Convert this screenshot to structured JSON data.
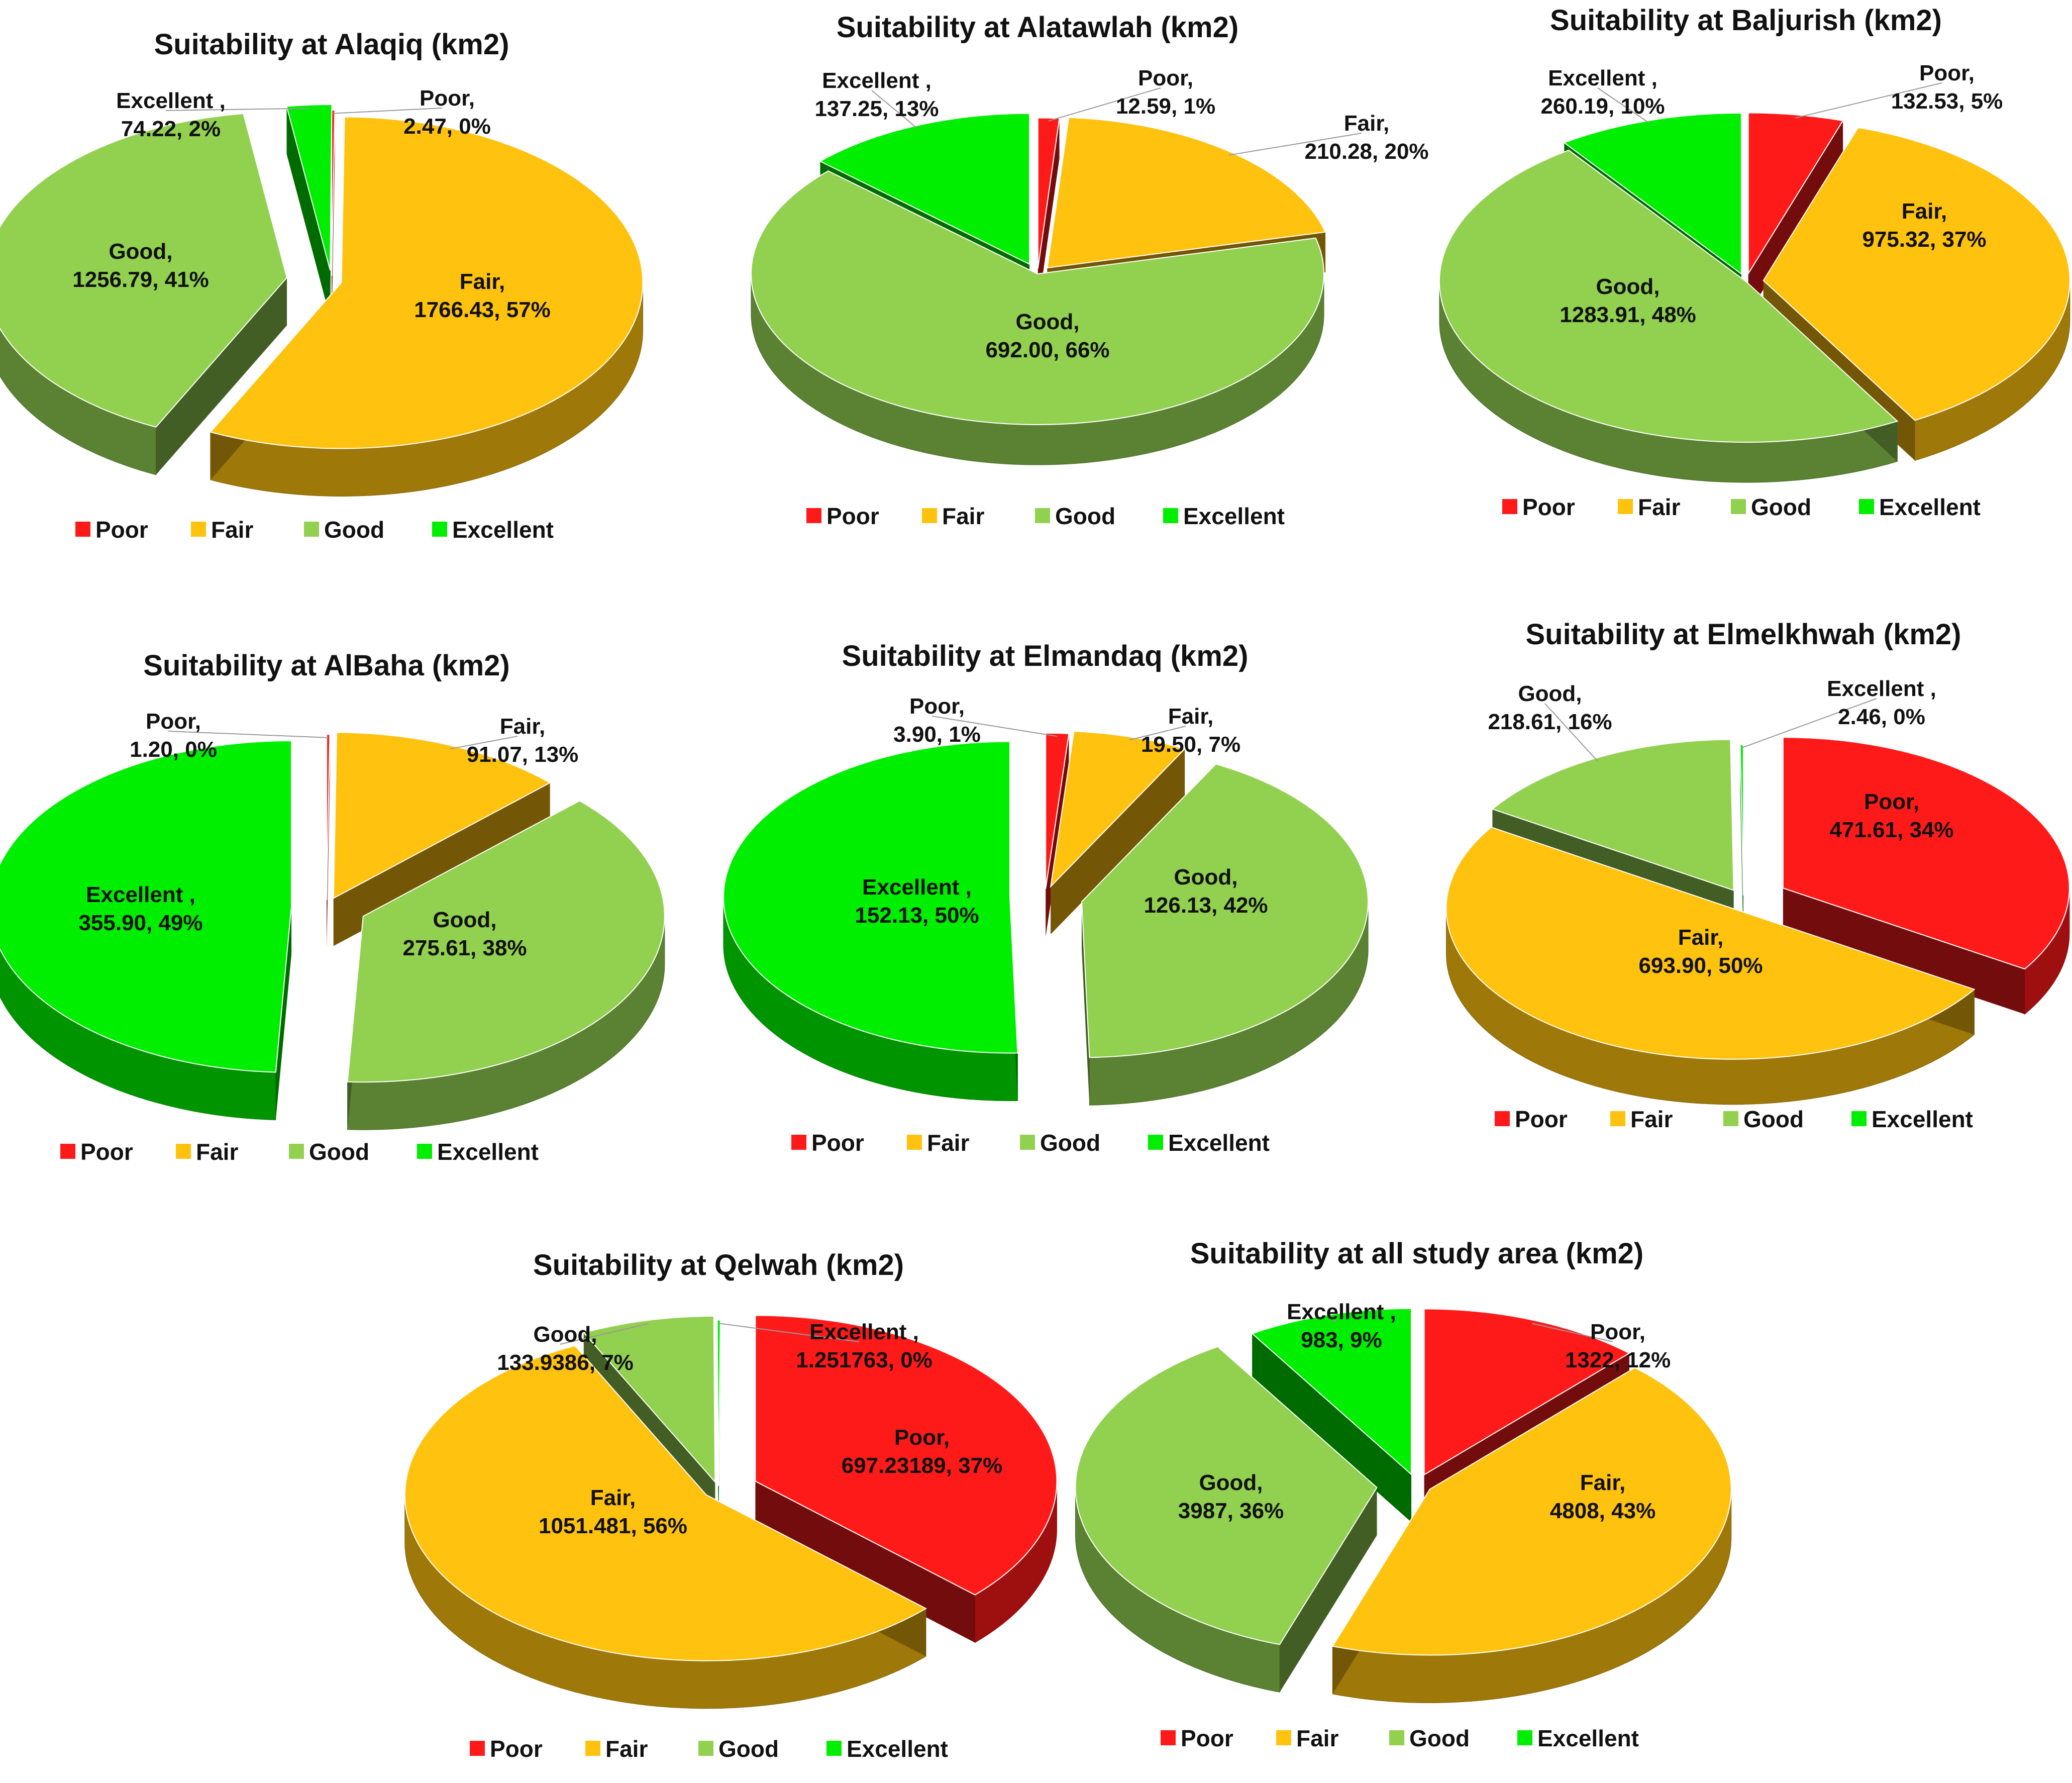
{
  "legend_categories": [
    "Poor",
    "Fair",
    "Good",
    "Excellent"
  ],
  "colors": {
    "Poor": "#ff1a1a",
    "Fair": "#ffc20e",
    "Good": "#92d050",
    "Excellent": "#00ee00"
  },
  "chart_data": [
    {
      "id": "alaqiq",
      "type": "pie",
      "title": "Suitability at  Alaqiq (km2)",
      "slices": [
        {
          "category": "Poor",
          "value": 2.47,
          "label": "Poor, 2.47, 0%"
        },
        {
          "category": "Fair",
          "value": 1766.43,
          "label": "Fair, 1766.43, 57%"
        },
        {
          "category": "Good",
          "value": 1256.79,
          "label": "Good, 1256.79, 41%"
        },
        {
          "category": "Excellent",
          "value": 74.22,
          "label": "Excellent , 74.22, 2%"
        }
      ]
    },
    {
      "id": "alatawlah",
      "type": "pie",
      "title": "Suitability at  Alatawlah (km2)",
      "slices": [
        {
          "category": "Poor",
          "value": 12.59,
          "label": "Poor, 12.59, 1%"
        },
        {
          "category": "Fair",
          "value": 210.28,
          "label": "Fair, 210.28, 20%"
        },
        {
          "category": "Good",
          "value": 692.0,
          "label": "Good, 692.00, 66%"
        },
        {
          "category": "Excellent",
          "value": 137.25,
          "label": "Excellent , 137.25, 13%"
        }
      ]
    },
    {
      "id": "baljurish",
      "type": "pie",
      "title": "Suitability at  Baljurish (km2)",
      "slices": [
        {
          "category": "Poor",
          "value": 132.53,
          "label": "Poor, 132.53, 5%"
        },
        {
          "category": "Fair",
          "value": 975.32,
          "label": "Fair, 975.32, 37%"
        },
        {
          "category": "Good",
          "value": 1283.91,
          "label": "Good, 1283.91, 48%"
        },
        {
          "category": "Excellent",
          "value": 260.19,
          "label": "Excellent , 260.19, 10%"
        }
      ]
    },
    {
      "id": "albaha",
      "type": "pie",
      "title": "Suitability at  AlBaha (km2)",
      "slices": [
        {
          "category": "Poor",
          "value": 1.2,
          "label": "Poor, 1.20, 0%"
        },
        {
          "category": "Fair",
          "value": 91.07,
          "label": "Fair, 91.07, 13%"
        },
        {
          "category": "Good",
          "value": 275.61,
          "label": "Good, 275.61, 38%"
        },
        {
          "category": "Excellent",
          "value": 355.9,
          "label": "Excellent , 355.90, 49%"
        }
      ]
    },
    {
      "id": "elmandaq",
      "type": "pie",
      "title": "Suitability at Elmandaq (km2)",
      "slices": [
        {
          "category": "Poor",
          "value": 3.9,
          "label": "Poor, 3.90, 1%"
        },
        {
          "category": "Fair",
          "value": 19.5,
          "label": "Fair, 19.50, 7%"
        },
        {
          "category": "Good",
          "value": 126.13,
          "label": "Good, 126.13, 42%"
        },
        {
          "category": "Excellent",
          "value": 152.13,
          "label": "Excellent , 152.13, 50%"
        }
      ]
    },
    {
      "id": "elmelkhwah",
      "type": "pie",
      "title": "Suitability at  Elmelkhwah (km2)",
      "slices": [
        {
          "category": "Poor",
          "value": 471.61,
          "label": "Poor, 471.61, 34%"
        },
        {
          "category": "Fair",
          "value": 693.9,
          "label": "Fair, 693.90, 50%"
        },
        {
          "category": "Good",
          "value": 218.61,
          "label": "Good, 218.61, 16%"
        },
        {
          "category": "Excellent",
          "value": 2.46,
          "label": "Excellent , 2.46, 0%"
        }
      ]
    },
    {
      "id": "qelwah",
      "type": "pie",
      "title": "Suitability at Qelwah (km2)",
      "slices": [
        {
          "category": "Poor",
          "value": 697.23189,
          "label": "Poor, 697.23189, 37%"
        },
        {
          "category": "Fair",
          "value": 1051.481,
          "label": "Fair, 1051.481, 56%"
        },
        {
          "category": "Good",
          "value": 133.9386,
          "label": "Good, 133.9386, 7%"
        },
        {
          "category": "Excellent",
          "value": 1.251763,
          "label": "Excellent , 1.251763, 0%"
        }
      ]
    },
    {
      "id": "all",
      "type": "pie",
      "title": "Suitability at all study area (km2)",
      "slices": [
        {
          "category": "Poor",
          "value": 1322,
          "label": "Poor, 1322, 12%"
        },
        {
          "category": "Fair",
          "value": 4808,
          "label": "Fair, 4808, 43%"
        },
        {
          "category": "Good",
          "value": 3987,
          "label": "Good, 3987, 36%"
        },
        {
          "category": "Excellent",
          "value": 983,
          "label": "Excellent , 983, 9%"
        }
      ]
    }
  ]
}
